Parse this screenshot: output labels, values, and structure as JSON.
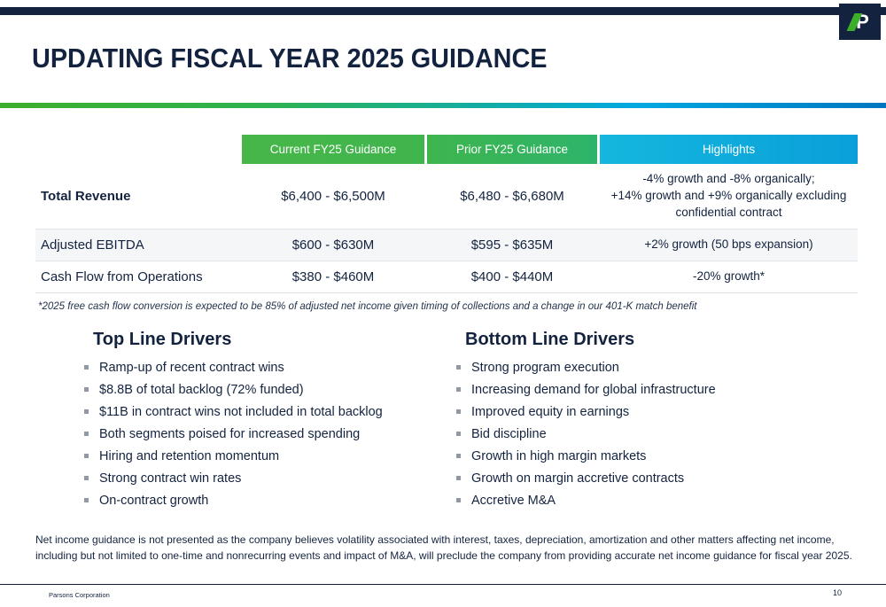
{
  "slide": {
    "title": "UPDATING FISCAL YEAR 2025 GUIDANCE",
    "logo_letter": "P"
  },
  "theme": {
    "navy": "#13233f",
    "green": "#47b649",
    "cyan": "#0aa2dc"
  },
  "table": {
    "headers": [
      "Current FY25 Guidance",
      "Prior FY25 Guidance",
      "Highlights"
    ],
    "rows": [
      {
        "label": "Total Revenue",
        "current": "$6,400 - $6,500M",
        "prior": "$6,480 - $6,680M",
        "highlight": "-4% growth and -8% organically;\n+14% growth and +9% organically excluding\nconfidential contract"
      },
      {
        "label": "Adjusted EBITDA",
        "current": "$600 - $630M",
        "prior": "$595 - $635M",
        "highlight": "+2% growth (50 bps expansion)"
      },
      {
        "label": "Cash Flow from Operations",
        "current": "$380 - $460M",
        "prior": "$400 - $440M",
        "highlight": "-20% growth*"
      }
    ],
    "footnote": "*2025 free cash flow conversion is expected to be 85% of adjusted net income given timing of collections and a change in our 401-K match benefit"
  },
  "drivers": {
    "top": {
      "title": "Top Line Drivers",
      "items": [
        "Ramp-up of recent contract wins",
        "$8.8B of total backlog (72% funded)",
        "$11B in contract wins not included in total backlog",
        "Both segments poised for increased spending",
        "Hiring and retention momentum",
        "Strong contract win rates",
        "On-contract growth"
      ]
    },
    "bottom": {
      "title": "Bottom Line Drivers",
      "items": [
        "Strong program execution",
        "Increasing demand for global infrastructure",
        "Improved equity in earnings",
        "Bid discipline",
        "Growth in high margin markets",
        "Growth on margin accretive contracts",
        "Accretive M&A"
      ]
    }
  },
  "disclaimer": "Net income guidance is not presented as the company believes volatility associated with interest, taxes, depreciation, amortization and other matters affecting net income, including but not limited to one-time and nonrecurring events and impact of M&A, will preclude the company from providing accurate net income guidance for fiscal year 2025.",
  "footer": {
    "company": "Parsons Corporation",
    "page": "10"
  }
}
